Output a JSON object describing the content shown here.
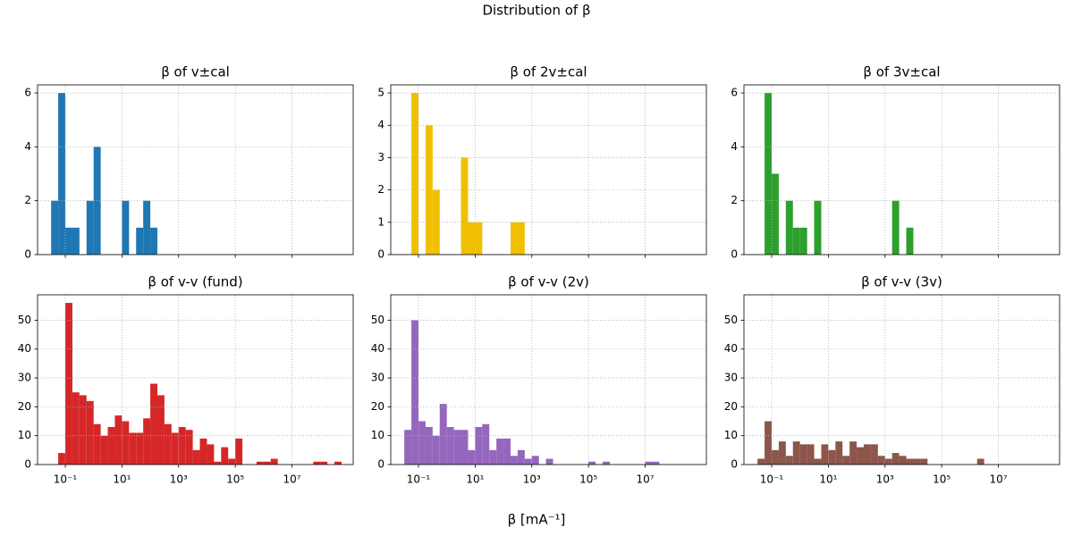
{
  "title": "Distribution of β",
  "xlabel": "β [mA⁻¹]",
  "chart_data": [
    {
      "type": "histogram",
      "title": "β of v±cal",
      "color": "#1f77b4",
      "xscale": "log",
      "grid": true,
      "bins": [
        0.0316,
        0.0562,
        0.1,
        0.178,
        0.316,
        0.562,
        1,
        1.78,
        3.16,
        5.62,
        10,
        17.8,
        31.6,
        56.2,
        100,
        178
      ],
      "values": [
        2,
        6,
        1,
        1,
        0,
        2,
        4,
        0,
        0,
        0,
        2,
        0,
        1,
        2,
        1
      ],
      "xlim": [
        0.0105,
        1450000000
      ],
      "xticks": [
        0.1,
        10,
        1000,
        100000,
        10000000
      ],
      "ylim": [
        0,
        6.3
      ],
      "yticks": [
        0,
        2,
        4,
        6
      ]
    },
    {
      "type": "histogram",
      "title": "β of 2v±cal",
      "color": "#f0c000",
      "xscale": "log",
      "grid": true,
      "bins": [
        0.0562,
        0.1,
        0.178,
        0.316,
        0.562,
        1,
        1.78,
        3.16,
        5.62,
        10,
        17.8,
        31.6,
        56.2,
        100,
        178,
        316,
        562
      ],
      "values": [
        5,
        0,
        4,
        2,
        0,
        0,
        0,
        3,
        1,
        1,
        0,
        0,
        0,
        0,
        1,
        1
      ],
      "xlim": [
        0.0105,
        1450000000
      ],
      "xticks": [
        0.1,
        10,
        1000,
        100000,
        10000000
      ],
      "ylim": [
        0,
        5.25
      ],
      "yticks": [
        0,
        1,
        2,
        3,
        4,
        5
      ]
    },
    {
      "type": "histogram",
      "title": "β of 3v±cal",
      "color": "#2ca02c",
      "xscale": "log",
      "grid": true,
      "bins": [
        0.0562,
        0.1,
        0.178,
        0.316,
        0.562,
        1,
        1.78,
        3.16,
        5.62,
        10,
        17.8,
        31.6,
        56.2,
        100,
        178,
        316,
        562,
        1000,
        1780,
        3160,
        5620,
        10000
      ],
      "values": [
        6,
        3,
        0,
        2,
        1,
        1,
        0,
        2,
        0,
        0,
        0,
        0,
        0,
        0,
        0,
        0,
        0,
        0,
        2,
        0,
        1
      ],
      "xlim": [
        0.0105,
        1450000000
      ],
      "xticks": [
        0.1,
        10,
        1000,
        100000,
        10000000
      ],
      "ylim": [
        0,
        6.3
      ],
      "yticks": [
        0,
        2,
        4,
        6
      ]
    },
    {
      "type": "histogram",
      "title": "β of v-v (fund)",
      "color": "#d62728",
      "xscale": "log",
      "grid": true,
      "bins": [
        0.0562,
        0.1,
        0.178,
        0.316,
        0.562,
        1,
        1.78,
        3.16,
        5.62,
        10,
        17.8,
        31.6,
        56.2,
        100,
        178,
        316,
        562,
        1000,
        1780,
        3160,
        5620,
        10000,
        17800,
        31600,
        56200,
        100000,
        178000,
        316000,
        562000,
        1000000,
        1780000,
        3160000,
        5620000,
        10000000,
        17800000,
        31600000,
        56200000,
        100000000,
        178000000,
        316000000,
        562000000
      ],
      "values": [
        4,
        56,
        25,
        24,
        22,
        14,
        10,
        13,
        17,
        15,
        11,
        11,
        16,
        28,
        24,
        14,
        11,
        13,
        12,
        5,
        9,
        7,
        1,
        6,
        2,
        9,
        0,
        0,
        1,
        1,
        2,
        0,
        0,
        0,
        0,
        0,
        1,
        1,
        0,
        1
      ],
      "xlim": [
        0.0105,
        1450000000
      ],
      "xticks": [
        {
          "value": 0.1,
          "label": "10⁻¹"
        },
        {
          "value": 10,
          "label": "10¹"
        },
        {
          "value": 1000,
          "label": "10³"
        },
        {
          "value": 100000,
          "label": "10⁵"
        },
        {
          "value": 10000000,
          "label": "10⁷"
        }
      ],
      "ylim": [
        0,
        58.8
      ],
      "yticks": [
        0,
        10,
        20,
        30,
        40,
        50
      ]
    },
    {
      "type": "histogram",
      "title": "β of v-v (2v)",
      "color": "#9467bd",
      "xscale": "log",
      "grid": true,
      "bins": [
        0.0316,
        0.0562,
        0.1,
        0.178,
        0.316,
        0.562,
        1,
        1.78,
        3.16,
        5.62,
        10,
        17.8,
        31.6,
        56.2,
        100,
        178,
        316,
        562,
        1000,
        1780,
        3160,
        5620,
        10000,
        17800,
        31600,
        56200,
        100000,
        178000,
        316000,
        562000,
        1000000,
        1780000,
        3160000,
        5620000,
        10000000,
        17800000,
        31600000
      ],
      "values": [
        12,
        50,
        15,
        13,
        10,
        21,
        13,
        12,
        12,
        5,
        13,
        14,
        5,
        9,
        9,
        3,
        5,
        2,
        3,
        0,
        2,
        0,
        0,
        0,
        0,
        0,
        1,
        0,
        1,
        0,
        0,
        0,
        0,
        0,
        1,
        1
      ],
      "xlim": [
        0.0105,
        1450000000
      ],
      "xticks": [
        {
          "value": 0.1,
          "label": "10⁻¹"
        },
        {
          "value": 10,
          "label": "10¹"
        },
        {
          "value": 1000,
          "label": "10³"
        },
        {
          "value": 100000,
          "label": "10⁵"
        },
        {
          "value": 10000000,
          "label": "10⁷"
        }
      ],
      "ylim": [
        0,
        58.8
      ],
      "yticks": [
        0,
        10,
        20,
        30,
        40,
        50
      ]
    },
    {
      "type": "histogram",
      "title": "β of v-v (3v)",
      "color": "#8c564b",
      "xscale": "log",
      "grid": true,
      "bins": [
        0.0316,
        0.0562,
        0.1,
        0.178,
        0.316,
        0.562,
        1,
        1.78,
        3.16,
        5.62,
        10,
        17.8,
        31.6,
        56.2,
        100,
        178,
        316,
        562,
        1000,
        1780,
        3160,
        5620,
        10000,
        17800,
        31600,
        56200,
        100000,
        178000,
        316000,
        562000,
        1000000,
        1780000,
        3160000
      ],
      "values": [
        2,
        15,
        5,
        8,
        3,
        8,
        7,
        7,
        2,
        7,
        5,
        8,
        3,
        8,
        6,
        7,
        7,
        3,
        2,
        4,
        3,
        2,
        2,
        2,
        0,
        0,
        0,
        0,
        0,
        0,
        0,
        2
      ],
      "xlim": [
        0.0105,
        1450000000
      ],
      "xticks": [
        {
          "value": 0.1,
          "label": "10⁻¹"
        },
        {
          "value": 10,
          "label": "10¹"
        },
        {
          "value": 1000,
          "label": "10³"
        },
        {
          "value": 100000,
          "label": "10⁵"
        },
        {
          "value": 10000000,
          "label": "10⁷"
        }
      ],
      "ylim": [
        0,
        58.8
      ],
      "yticks": [
        0,
        10,
        20,
        30,
        40,
        50
      ]
    }
  ]
}
